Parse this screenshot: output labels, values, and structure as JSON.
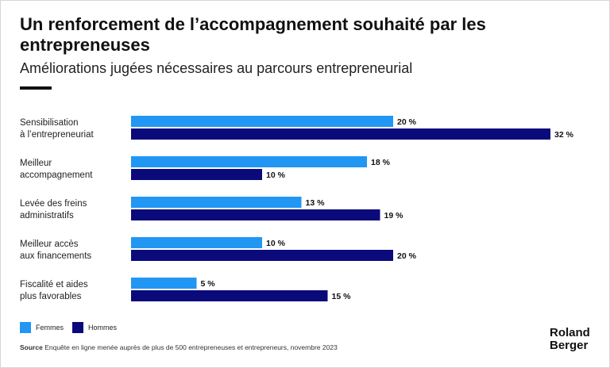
{
  "header": {
    "title": "Un renforcement de l’accompagnement souhaité par les entrepreneuses",
    "subtitle": "Améliorations jugées nécessaires au parcours entrepreneurial"
  },
  "chart_data": {
    "type": "bar",
    "orientation": "horizontal",
    "categories": [
      [
        "Sensibilisation",
        "à l’entrepreneuriat"
      ],
      [
        "Meilleur",
        "accompagnement"
      ],
      [
        "Levée des freins",
        "administratifs"
      ],
      [
        "Meilleur accès",
        "aux financements"
      ],
      [
        "Fiscalité et aides",
        "plus favorables"
      ]
    ],
    "series": [
      {
        "name": "Femmes",
        "color": "#2196f3",
        "values": [
          20,
          18,
          13,
          10,
          5
        ]
      },
      {
        "name": "Hommes",
        "color": "#0a0a7a",
        "values": [
          32,
          10,
          19,
          20,
          15
        ]
      }
    ],
    "value_suffix": " %",
    "xlim": [
      0,
      32
    ],
    "grid": false,
    "legend_position": "bottom-left"
  },
  "footer": {
    "source_label": "Source",
    "source_text": "Enquête en ligne menée auprès de plus de 500 entrepreneuses et entrepreneurs, novembre 2023",
    "logo_line1": "Roland",
    "logo_line2": "Berger"
  }
}
